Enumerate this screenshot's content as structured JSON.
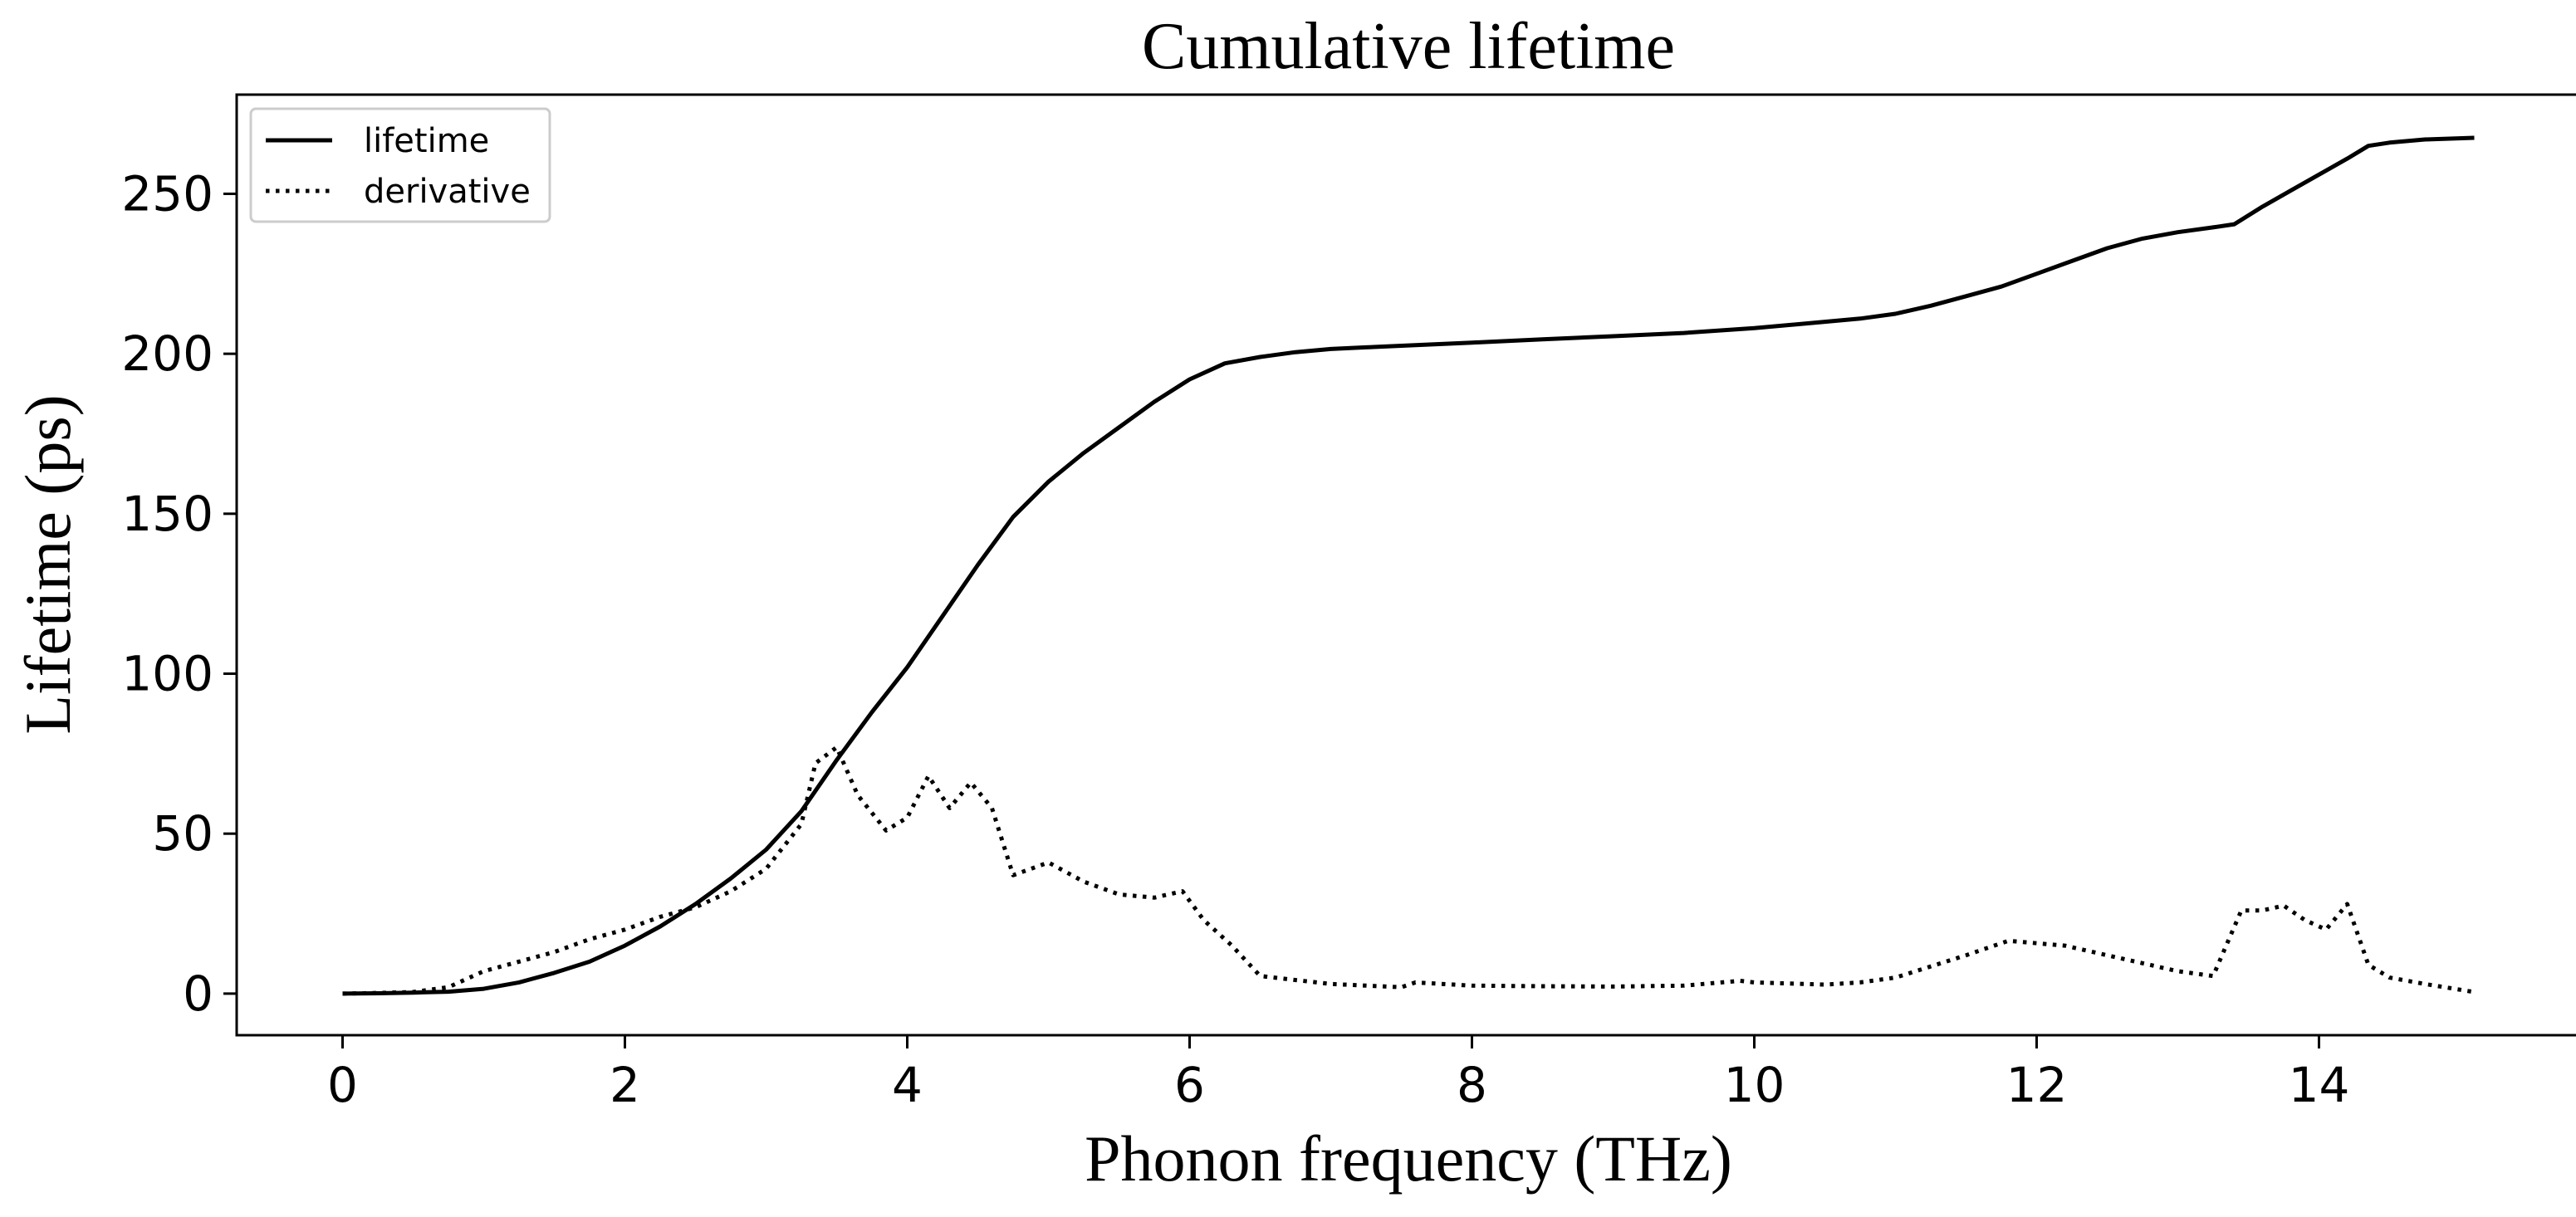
{
  "chart_data": {
    "type": "line",
    "title": "Cumulative lifetime",
    "xlabel": "Phonon frequency (THz)",
    "ylabel": "Lifetime (ps)",
    "xlim": [
      -0.75,
      15.85
    ],
    "ylim": [
      -13,
      281
    ],
    "xticks": [
      0,
      2,
      4,
      6,
      8,
      10,
      12,
      14
    ],
    "yticks": [
      0,
      50,
      100,
      150,
      200,
      250
    ],
    "grid": false,
    "legend": {
      "placement": "upper-left",
      "entries": [
        {
          "label": "lifetime",
          "style": "solid"
        },
        {
          "label": "derivative",
          "style": "dotted"
        }
      ]
    },
    "series": [
      {
        "name": "lifetime",
        "style": "solid",
        "color": "#000000",
        "x": [
          0,
          0.25,
          0.5,
          0.75,
          1.0,
          1.25,
          1.5,
          1.75,
          2.0,
          2.25,
          2.5,
          2.75,
          3.0,
          3.25,
          3.5,
          3.75,
          4.0,
          4.25,
          4.5,
          4.75,
          5.0,
          5.25,
          5.5,
          5.75,
          6.0,
          6.25,
          6.5,
          6.75,
          7.0,
          7.25,
          7.5,
          7.75,
          8.0,
          8.5,
          9.0,
          9.5,
          10.0,
          10.5,
          10.75,
          11.0,
          11.25,
          11.5,
          11.75,
          12.0,
          12.25,
          12.5,
          12.75,
          13.0,
          13.25,
          13.4,
          13.6,
          13.8,
          14.0,
          14.2,
          14.35,
          14.5,
          14.75,
          15.1
        ],
        "y": [
          0,
          0.1,
          0.3,
          0.6,
          1.5,
          3.5,
          6.5,
          10,
          15,
          21,
          28,
          36,
          45,
          57,
          73,
          88,
          102,
          118,
          134,
          149,
          160,
          169,
          177,
          185,
          192,
          197,
          199,
          200.5,
          201.5,
          202,
          202.5,
          203,
          203.5,
          204.5,
          205.5,
          206.5,
          208,
          210,
          211,
          212.5,
          215,
          218,
          221,
          225,
          229,
          233,
          236,
          238,
          239.5,
          240.5,
          246,
          251,
          256,
          261,
          265,
          266,
          267,
          267.5
        ]
      },
      {
        "name": "derivative",
        "style": "dotted",
        "color": "#000000",
        "x": [
          0,
          0.25,
          0.5,
          0.75,
          1.0,
          1.25,
          1.5,
          1.75,
          2.0,
          2.25,
          2.5,
          2.75,
          3.0,
          3.25,
          3.35,
          3.5,
          3.65,
          3.85,
          4.0,
          4.15,
          4.3,
          4.45,
          4.6,
          4.75,
          5.0,
          5.25,
          5.5,
          5.75,
          5.95,
          6.1,
          6.3,
          6.5,
          7.0,
          7.5,
          7.6,
          8.0,
          8.5,
          9.0,
          9.5,
          9.9,
          10.0,
          10.5,
          10.75,
          11.0,
          11.5,
          11.8,
          12.2,
          12.5,
          12.75,
          13.0,
          13.25,
          13.45,
          13.6,
          13.75,
          13.9,
          14.05,
          14.2,
          14.35,
          14.5,
          14.75,
          15.1
        ],
        "y": [
          0,
          0.2,
          0.5,
          2,
          7,
          10,
          13,
          17,
          20,
          24,
          27,
          32,
          39,
          53,
          72,
          77,
          62,
          51,
          55,
          68,
          58,
          66,
          58,
          37,
          41,
          35,
          31,
          30,
          32,
          23,
          15,
          5.5,
          3,
          2,
          3.5,
          2.5,
          2.3,
          2.2,
          2.5,
          4,
          3.5,
          2.8,
          3.5,
          5,
          12,
          16.5,
          15,
          12,
          9.5,
          7,
          5.5,
          26,
          26,
          27.5,
          23,
          20,
          28,
          9,
          5,
          3,
          0.5
        ]
      }
    ]
  }
}
